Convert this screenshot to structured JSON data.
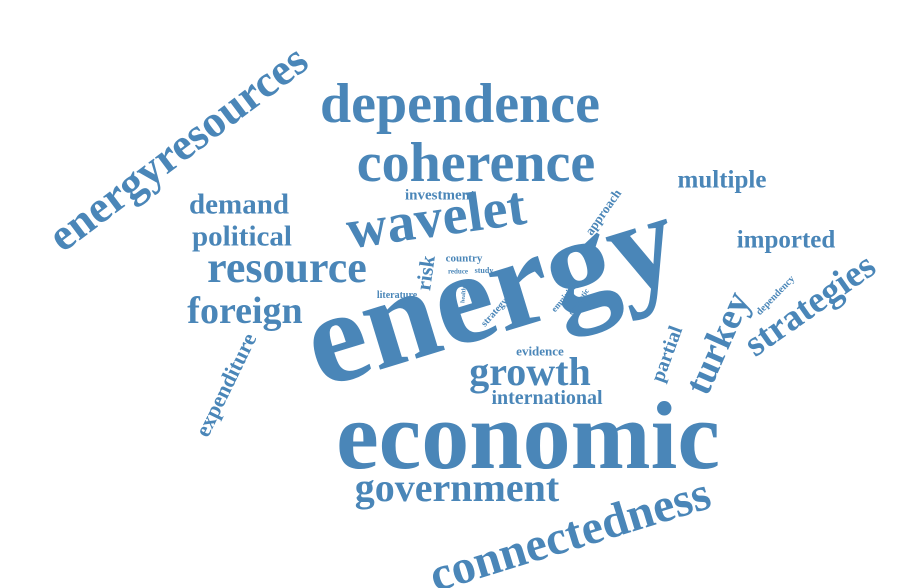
{
  "colors": {
    "word": "#4a86b8",
    "background": "#ffffff"
  },
  "words": [
    {
      "id": "energy",
      "text": "energy"
    },
    {
      "id": "economic",
      "text": "economic"
    },
    {
      "id": "connectedness",
      "text": "connectedness"
    },
    {
      "id": "dependence",
      "text": "dependence"
    },
    {
      "id": "coherence",
      "text": "coherence"
    },
    {
      "id": "energyresources",
      "text": "energyresources"
    },
    {
      "id": "wavelet",
      "text": "wavelet"
    },
    {
      "id": "resource",
      "text": "resource"
    },
    {
      "id": "government",
      "text": "government"
    },
    {
      "id": "growth",
      "text": "growth"
    },
    {
      "id": "strategies",
      "text": "strategies"
    },
    {
      "id": "turkey",
      "text": "turkey"
    },
    {
      "id": "foreign",
      "text": "foreign"
    },
    {
      "id": "political",
      "text": "political"
    },
    {
      "id": "demand",
      "text": "demand"
    },
    {
      "id": "multiple",
      "text": "multiple"
    },
    {
      "id": "imported",
      "text": "imported"
    },
    {
      "id": "expenditure",
      "text": "expenditure"
    },
    {
      "id": "international",
      "text": "international"
    },
    {
      "id": "partial",
      "text": "partial"
    },
    {
      "id": "risk",
      "text": "risk"
    },
    {
      "id": "investment",
      "text": "investment"
    },
    {
      "id": "approach",
      "text": "approach"
    },
    {
      "id": "evidence",
      "text": "evidence"
    },
    {
      "id": "dependency",
      "text": "dependency"
    },
    {
      "id": "country",
      "text": "country"
    },
    {
      "id": "strategy",
      "text": "strategy"
    },
    {
      "id": "literature",
      "text": "literature"
    },
    {
      "id": "empirical",
      "text": "empirical"
    },
    {
      "id": "domestic",
      "text": "domestic"
    },
    {
      "id": "reduce",
      "text": "reduce"
    },
    {
      "id": "study",
      "text": "study"
    },
    {
      "id": "health",
      "text": "health"
    }
  ]
}
